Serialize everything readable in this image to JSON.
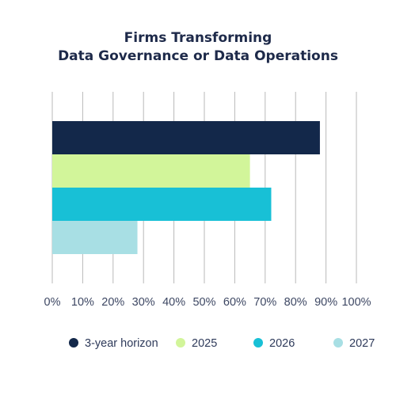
{
  "chart_data": {
    "type": "bar",
    "orientation": "horizontal",
    "title_lines": [
      "Firms Transforming",
      "Data Governance or Data Operations"
    ],
    "xlim": [
      0,
      100
    ],
    "x_ticks": [
      0,
      10,
      20,
      30,
      40,
      50,
      60,
      70,
      80,
      90,
      100
    ],
    "x_tick_labels": [
      "0%",
      "10%",
      "20%",
      "30%",
      "40%",
      "50%",
      "60%",
      "70%",
      "80%",
      "90%",
      "100%"
    ],
    "grid": true,
    "legend_position": "bottom",
    "series": [
      {
        "name": "3-year horizon",
        "value": 88,
        "color": "#13284a"
      },
      {
        "name": "2025",
        "value": 65,
        "color": "#d2f59a"
      },
      {
        "name": "2026",
        "value": 72,
        "color": "#18c0d6"
      },
      {
        "name": "2027",
        "value": 28,
        "color": "#a8dfe4"
      }
    ]
  }
}
